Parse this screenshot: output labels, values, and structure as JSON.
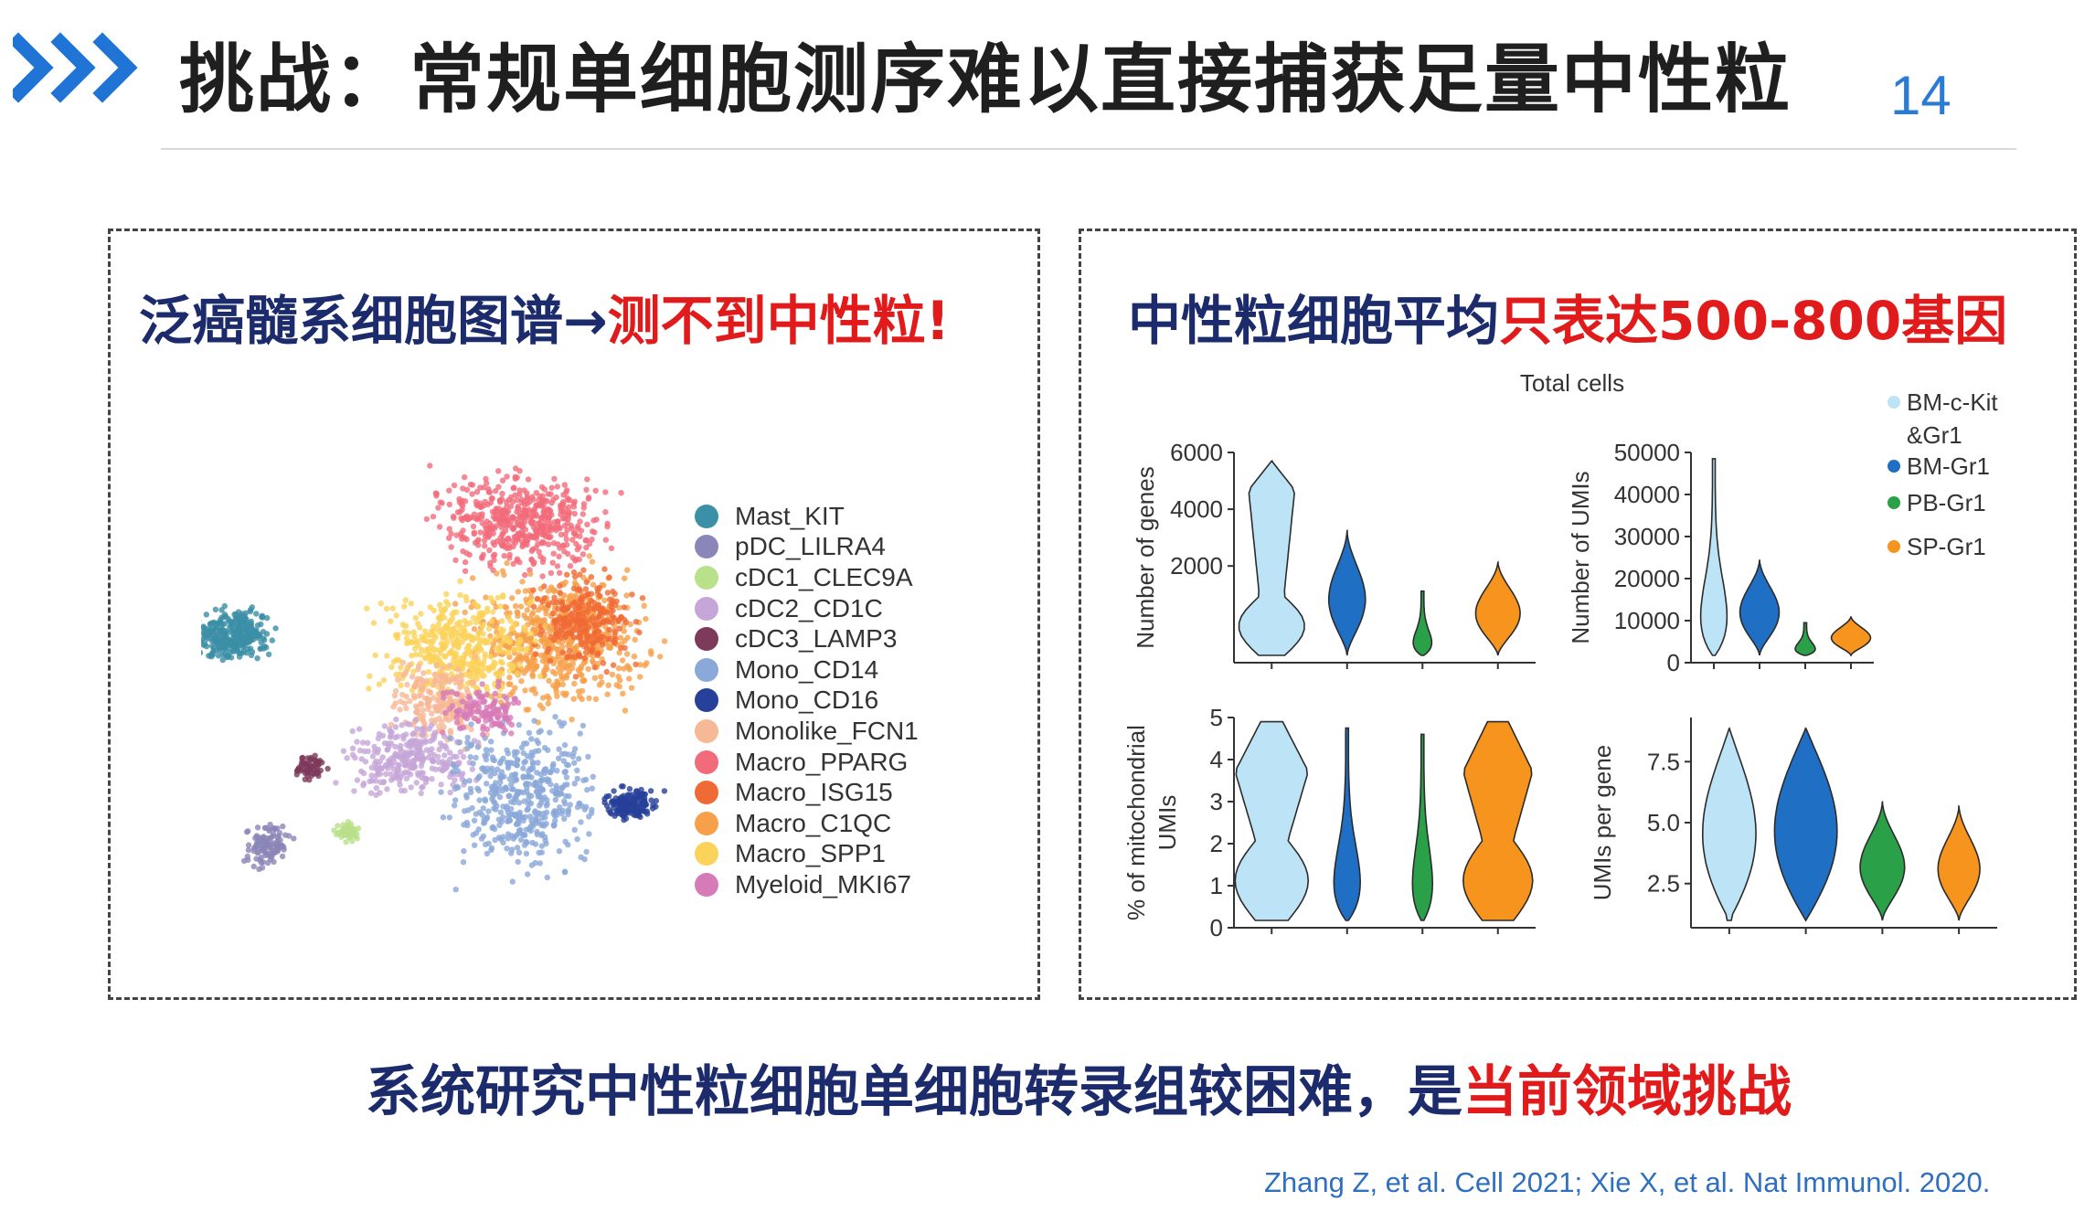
{
  "header": {
    "title": "挑战：常规单细胞测序难以直接捕获足量中性粒",
    "page_number": "14",
    "chevron_color": "#1f74d6"
  },
  "left_panel": {
    "heading_plain": "泛癌髓系细胞图谱→",
    "heading_highlight": "测不到中性粒!",
    "legend": [
      {
        "label": "Mast_KIT",
        "color": "#3b8fa6"
      },
      {
        "label": "pDC_LILRA4",
        "color": "#8b86b8"
      },
      {
        "label": "cDC1_CLEC9A",
        "color": "#b9e08a"
      },
      {
        "label": "cDC2_CD1C",
        "color": "#c6a6d8"
      },
      {
        "label": "cDC3_LAMP3",
        "color": "#7d3a5a"
      },
      {
        "label": "Mono_CD14",
        "color": "#8aa8d8"
      },
      {
        "label": "Mono_CD16",
        "color": "#27409a"
      },
      {
        "label": "Monolike_FCN1",
        "color": "#f7b896"
      },
      {
        "label": "Macro_PPARG",
        "color": "#f26b7a"
      },
      {
        "label": "Macro_ISG15",
        "color": "#f06a35"
      },
      {
        "label": "Macro_C1QC",
        "color": "#f6a04a"
      },
      {
        "label": "Macro_SPP1",
        "color": "#fbd25a"
      },
      {
        "label": "Myeloid_MKI67",
        "color": "#d77ab8"
      }
    ]
  },
  "right_panel": {
    "heading_plain": "中性粒细胞平均",
    "heading_highlight": "只表达500-800基因",
    "figure_title": "Total cells",
    "legend": [
      {
        "label": "BM-c-Kit &Gr1",
        "color": "#bde3f7"
      },
      {
        "label": "BM-Gr1",
        "color": "#1f6fc4"
      },
      {
        "label": "PB-Gr1",
        "color": "#2aa048"
      },
      {
        "label": "SP-Gr1",
        "color": "#f7941d"
      }
    ],
    "panels": [
      {
        "ylabel": "Number of genes",
        "ticks": [
          "6000",
          "4000",
          "2000"
        ]
      },
      {
        "ylabel": "Number of UMIs",
        "ticks": [
          "50000",
          "40000",
          "30000",
          "20000",
          "10000",
          "0"
        ]
      },
      {
        "ylabel": "% of mitochondrial UMIs",
        "ticks": [
          "5",
          "4",
          "3",
          "2",
          "1",
          "0"
        ]
      },
      {
        "ylabel": "UMIs per gene",
        "ticks": [
          "7.5",
          "5.0",
          "2.5"
        ]
      }
    ]
  },
  "footer": {
    "statement_plain": "系统研究中性粒细胞单细胞转录组较困难，是",
    "statement_highlight": "当前领域挑战",
    "citation": "Zhang Z, et al. Cell 2021; Xie X, et al. Nat Immunol. 2020."
  }
}
